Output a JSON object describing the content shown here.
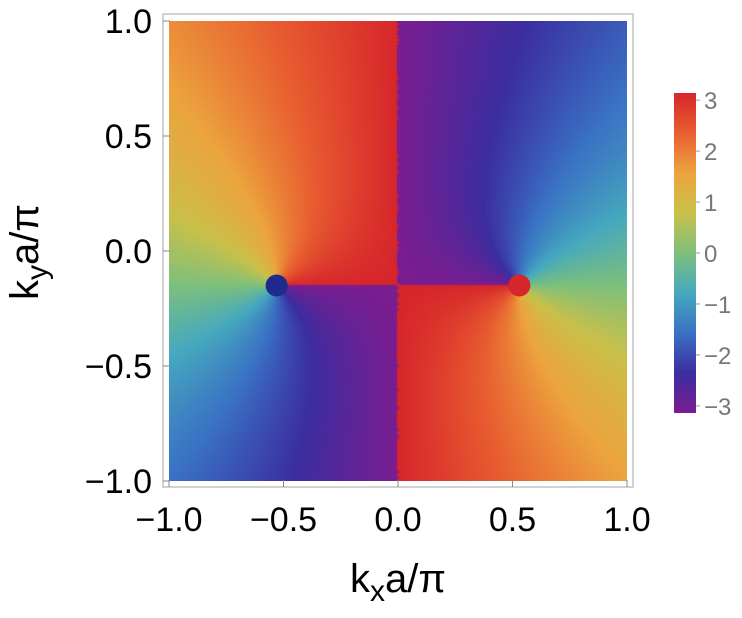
{
  "chart_data": {
    "type": "heatmap",
    "title": "",
    "xlabel": {
      "pre": "k",
      "sub": "x",
      "post": "a/π"
    },
    "ylabel": {
      "pre": "k",
      "sub": "y",
      "post": "a/π"
    },
    "xlim": [
      -1.0,
      1.0
    ],
    "ylim": [
      -1.0,
      1.0
    ],
    "x_ticks": [
      {
        "value": -1.0,
        "label": "−1.0"
      },
      {
        "value": -0.5,
        "label": "−0.5"
      },
      {
        "value": 0.0,
        "label": "0.0"
      },
      {
        "value": 0.5,
        "label": "0.5"
      },
      {
        "value": 1.0,
        "label": "1.0"
      }
    ],
    "y_ticks": [
      {
        "value": -1.0,
        "label": "−1.0"
      },
      {
        "value": -0.5,
        "label": "−0.5"
      },
      {
        "value": 0.0,
        "label": "0.0"
      },
      {
        "value": 0.5,
        "label": "0.5"
      },
      {
        "value": 1.0,
        "label": "1.0"
      }
    ],
    "colorbar": {
      "range": [
        -3.14,
        3.14
      ],
      "ticks": [
        {
          "value": 3,
          "label": "3"
        },
        {
          "value": 2,
          "label": "2"
        },
        {
          "value": 1,
          "label": "1"
        },
        {
          "value": 0,
          "label": "0"
        },
        {
          "value": -1,
          "label": "−1"
        },
        {
          "value": -2,
          "label": "−2"
        },
        {
          "value": -3,
          "label": "−3"
        }
      ],
      "colors": [
        "#7a1d90",
        "#3b2ea0",
        "#3a72c4",
        "#46a9be",
        "#7dc07c",
        "#c9c04a",
        "#eca43e",
        "#e85e30",
        "#d7262b"
      ]
    },
    "points": [
      {
        "x": -0.53,
        "y": -0.15,
        "color": "#1f2a8c",
        "name": "blue-point"
      },
      {
        "x": 0.53,
        "y": -0.15,
        "color": "#d7262b",
        "name": "red-point"
      }
    ],
    "grid": false,
    "legend": "colorbar-right"
  }
}
